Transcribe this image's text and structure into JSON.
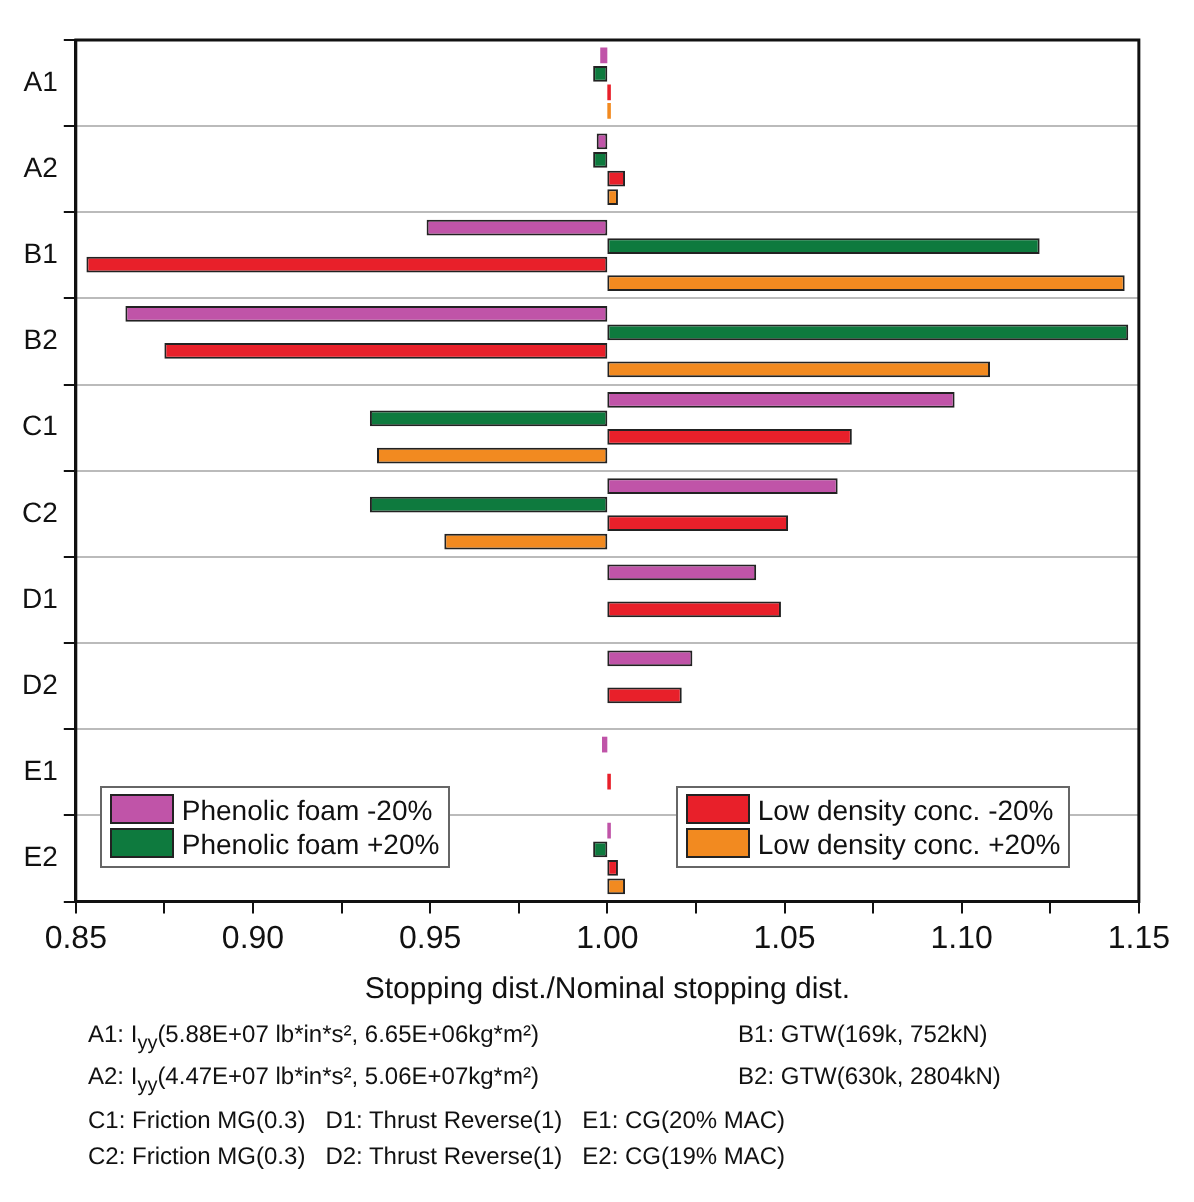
{
  "chart_data": {
    "type": "bar",
    "orientation": "horizontal",
    "xlabel": "Stopping dist./Nominal stopping dist.",
    "categories": [
      "A1",
      "A2",
      "B1",
      "B2",
      "C1",
      "C2",
      "D1",
      "D2",
      "E1",
      "E2"
    ],
    "series": [
      {
        "name": "Phenolic foam -20%",
        "color": "#c054a8",
        "base": [
          1,
          1,
          1,
          1,
          1,
          1,
          1,
          1,
          1,
          1
        ],
        "values": [
          -0.002,
          -0.003,
          -0.051,
          -0.136,
          0.098,
          0.065,
          0.042,
          0.024,
          -0.0015,
          0.001
        ]
      },
      {
        "name": "Phenolic foam +20%",
        "color": "#0e7a3e",
        "base": [
          1,
          1,
          1,
          1,
          1,
          1,
          null,
          null,
          null,
          1
        ],
        "values": [
          -0.004,
          -0.004,
          0.122,
          0.147,
          -0.067,
          -0.067,
          null,
          null,
          null,
          -0.004
        ]
      },
      {
        "name": "Low density conc. -20%",
        "color": "#e8202a",
        "base": [
          1,
          1,
          1,
          1,
          1,
          1,
          1,
          1,
          1,
          1
        ],
        "values": [
          0.001,
          0.005,
          -0.147,
          -0.125,
          0.069,
          0.051,
          0.049,
          0.021,
          0.001,
          0.003
        ]
      },
      {
        "name": "Low density conc. +20%",
        "color": "#f28a20",
        "base": [
          1,
          1,
          1,
          1,
          1,
          1,
          null,
          null,
          null,
          1
        ],
        "values": [
          0.001,
          0.003,
          0.146,
          0.108,
          -0.065,
          -0.046,
          null,
          null,
          null,
          0.005
        ]
      }
    ],
    "xlim": [
      0.85,
      1.15
    ],
    "xticks": [
      {
        "value": 0.85,
        "label": "0.85"
      },
      {
        "value": 0.875,
        "label": null
      },
      {
        "value": 0.9,
        "label": "0.90"
      },
      {
        "value": 0.925,
        "label": null
      },
      {
        "value": 0.95,
        "label": "0.95"
      },
      {
        "value": 0.975,
        "label": null
      },
      {
        "value": 1.0,
        "label": "1.00"
      },
      {
        "value": 1.025,
        "label": null
      },
      {
        "value": 1.05,
        "label": "1.05"
      },
      {
        "value": 1.075,
        "label": null
      },
      {
        "value": 1.1,
        "label": "1.10"
      },
      {
        "value": 1.125,
        "label": null
      },
      {
        "value": 1.15,
        "label": "1.15"
      }
    ],
    "grid": "y",
    "legend": "bottom",
    "annotations": [
      "A1: I$_{yy}$(5.88E+07 lb*in*s², 6.65E+06kg*m²)",
      "B1: GTW(169k, 752kN)",
      "A2: I$_{yy}$(4.47E+07 lb*in*s², 5.06E+07kg*m²)",
      "B2: GTW(630k, 2804kN)",
      "C1: Friction MG(0.3)",
      "D1: Thrust Reverse(1)",
      "E1: CG(20% MAC)",
      "C2: Friction MG(0.3)",
      "D2: Thrust Reverse(1)",
      "E2: CG(19% MAC)"
    ]
  }
}
